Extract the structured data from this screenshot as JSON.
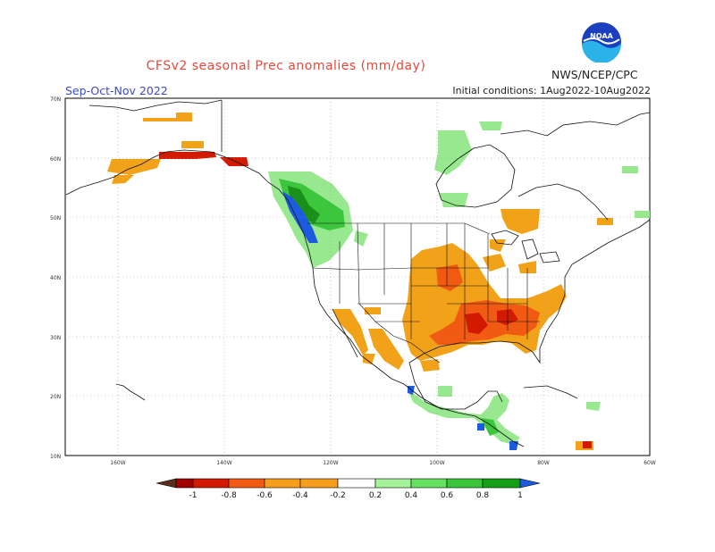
{
  "header": {
    "title": "CFSv2 seasonal Prec anomalies (mm/day)",
    "org": "NWS/NCEP/CPC",
    "logo_text": "NOAA",
    "season": "Sep-Oct-Nov 2022",
    "initial_conditions": "Initial conditions: 1Aug2022-10Aug2022"
  },
  "map": {
    "lat_labels": [
      "70N",
      "60N",
      "50N",
      "40N",
      "30N",
      "20N",
      "10N"
    ],
    "lon_labels": [
      "160W",
      "140W",
      "120W",
      "100W",
      "80W",
      "60W"
    ],
    "colors": {
      "dry_strong": "#d11a00",
      "dry_moderate": "#f05a12",
      "dry_light": "#f2a219",
      "wet_light": "#98e890",
      "wet_moderate": "#3cc63c",
      "wet_strong": "#1a8f1a",
      "wet_extreme": "#1c5be0",
      "coast": "#111111",
      "grid": "#999999"
    }
  },
  "colorbar": {
    "labels": [
      "-1",
      "-0.8",
      "-0.6",
      "-0.4",
      "-0.2",
      "0.2",
      "0.4",
      "0.6",
      "0.8",
      "1"
    ],
    "colors": [
      "#5a2d1e",
      "#a10000",
      "#d11a00",
      "#f05a12",
      "#f59e1c",
      "#ffffff",
      "#a6f29a",
      "#66e060",
      "#38c638",
      "#14a014",
      "#1c5be0"
    ]
  }
}
